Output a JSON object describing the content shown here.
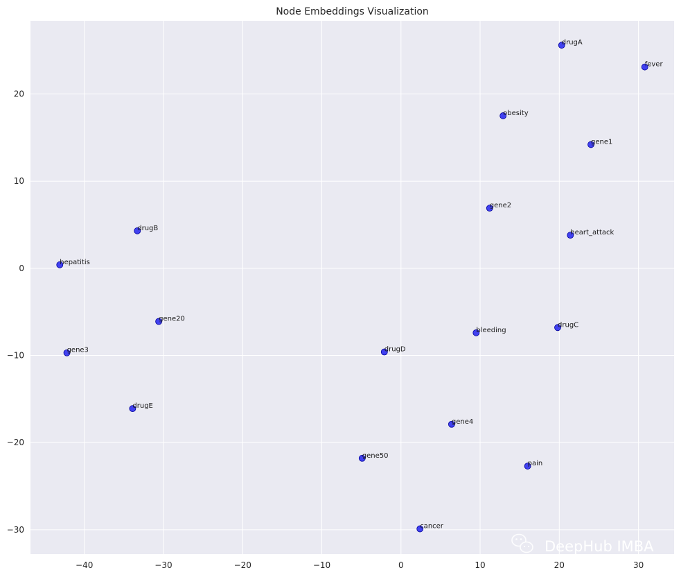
{
  "chart_data": {
    "type": "scatter",
    "title": "Node Embeddings Visualization",
    "xlabel": "",
    "ylabel": "",
    "xlim": [
      -46.8,
      34.5
    ],
    "ylim": [
      -32.8,
      28.4
    ],
    "xticks": [
      -40,
      -30,
      -20,
      -10,
      0,
      10,
      20,
      30
    ],
    "yticks": [
      -30,
      -20,
      -10,
      0,
      10,
      20
    ],
    "grid": true,
    "marker_color": "#0000ee",
    "background_color": "#eaeaf2",
    "points": [
      {
        "label": "drugA",
        "x": 20.3,
        "y": 25.6
      },
      {
        "label": "fever",
        "x": 30.8,
        "y": 23.1
      },
      {
        "label": "obesity",
        "x": 12.9,
        "y": 17.5
      },
      {
        "label": "gene1",
        "x": 24.0,
        "y": 14.2
      },
      {
        "label": "gene2",
        "x": 11.2,
        "y": 6.9
      },
      {
        "label": "heart_attack",
        "x": 21.4,
        "y": 3.8
      },
      {
        "label": "drugB",
        "x": -33.3,
        "y": 4.3
      },
      {
        "label": "hepatitis",
        "x": -43.1,
        "y": 0.4
      },
      {
        "label": "gene20",
        "x": -30.6,
        "y": -6.1
      },
      {
        "label": "gene3",
        "x": -42.2,
        "y": -9.7
      },
      {
        "label": "drugD",
        "x": -2.1,
        "y": -9.6
      },
      {
        "label": "bleeding",
        "x": 9.5,
        "y": -7.4
      },
      {
        "label": "drugC",
        "x": 19.8,
        "y": -6.8
      },
      {
        "label": "drugE",
        "x": -33.9,
        "y": -16.1
      },
      {
        "label": "gene4",
        "x": 6.4,
        "y": -17.9
      },
      {
        "label": "gene50",
        "x": -4.9,
        "y": -21.8
      },
      {
        "label": "pain",
        "x": 16.0,
        "y": -22.7
      },
      {
        "label": "cancer",
        "x": 2.4,
        "y": -29.9
      }
    ]
  },
  "watermark": {
    "text": "DeepHub IMBA",
    "icon": "wechat-icon"
  }
}
